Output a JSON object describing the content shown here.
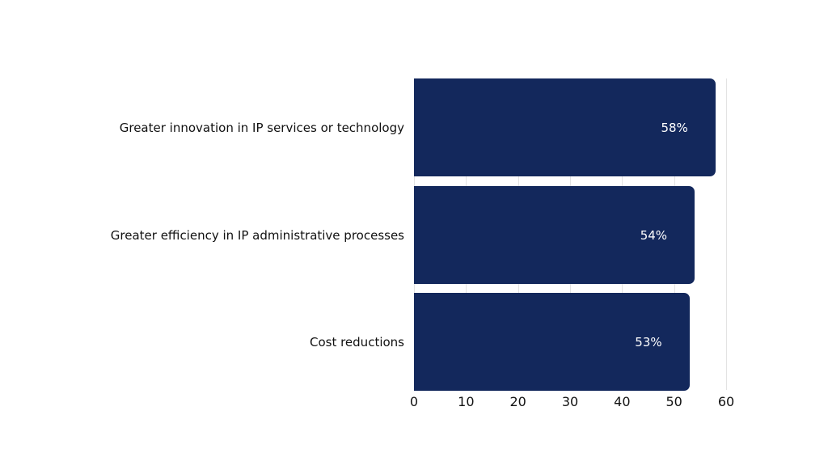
{
  "chart_data": {
    "type": "bar",
    "orientation": "horizontal",
    "title": "",
    "xlabel": "",
    "ylabel": "",
    "categories": [
      "Greater innovation in IP services or technology",
      "Greater efficiency in IP administrative processes",
      "Cost reductions"
    ],
    "values": [
      58,
      54,
      53
    ],
    "value_labels": [
      "58%",
      "54%",
      "53%"
    ],
    "xlim": [
      0,
      60
    ],
    "x_ticks": [
      "0",
      "10",
      "20",
      "30",
      "40",
      "50",
      "60"
    ],
    "grid": true,
    "legend": null,
    "colors": {
      "bar": "#13285c",
      "bar_label": "#ffffff",
      "grid": "#e3e3e3"
    }
  }
}
